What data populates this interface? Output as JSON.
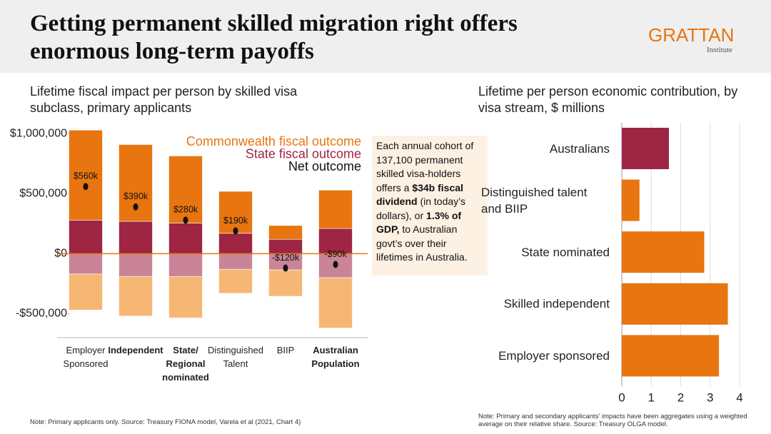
{
  "header": {
    "title": "Getting permanent skilled migration right offers enormous long-term payoffs",
    "logo": "GRATTAN",
    "logo_sub": "Institute"
  },
  "chart_data": [
    {
      "type": "stacked-bar",
      "title": "Lifetime fiscal impact per person by skilled visa subclass, primary applicants",
      "categories": [
        "Employer Sponsored",
        "Independent",
        "State/ Regional nominated",
        "Distinguished Talent",
        "BIIP",
        "Australian Population"
      ],
      "bold_categories": [
        false,
        true,
        true,
        false,
        false,
        true
      ],
      "series": [
        {
          "name": "Commonwealth fiscal outcome",
          "color": "#e8750f",
          "cost_color": "#f7b774",
          "gains": [
            750000,
            640000,
            560000,
            350000,
            115000,
            320000
          ],
          "costs": [
            -300000,
            -330000,
            -345000,
            -200000,
            -220000,
            -420000
          ]
        },
        {
          "name": "State fiscal outcome",
          "color": "#9e2543",
          "cost_color": "#c98597",
          "gains": [
            280000,
            270000,
            255000,
            170000,
            120000,
            210000
          ],
          "costs": [
            -170000,
            -190000,
            -190000,
            -130000,
            -135000,
            -200000
          ]
        }
      ],
      "net": {
        "name": "Net outcome",
        "color": "#111111",
        "values": [
          560000,
          390000,
          280000,
          190000,
          -120000,
          -90000
        ],
        "value_labels": [
          "$560k",
          "$390k",
          "$280k",
          "$190k",
          "-$120k",
          "-$90k"
        ]
      },
      "ylim": [
        -700000,
        1050000
      ],
      "yticks": [
        {
          "value": -500000,
          "label": "-$500,000"
        },
        {
          "value": 0,
          "label": "$0"
        },
        {
          "value": 500000,
          "label": "$500,000"
        },
        {
          "value": 1000000,
          "label": "$1,000,000"
        }
      ],
      "zero_line_color": "#e8750f",
      "annotation": [
        {
          "text": "Each annual cohort of 137,100 permanent skilled visa-holders offers a ",
          "bold": false
        },
        {
          "text": "$34b fiscal dividend",
          "bold": true
        },
        {
          "text": " (in today’s dollars), or ",
          "bold": false
        },
        {
          "text": "1.3% of GDP,",
          "bold": true
        },
        {
          "text": " to Australian govt’s over their lifetimes in Australia.",
          "bold": false
        }
      ],
      "note": "Note: Primary applicants only. Source: Treasury FIONA model, Varela et al (2021, Chart 4)"
    },
    {
      "type": "hbar",
      "title": "Lifetime per person economic contribution, by visa stream, $ millions",
      "categories": [
        "Australians",
        "Distinguished talent and BIIP",
        "State nominated",
        "Skilled independent",
        "Employer sponsored"
      ],
      "values": [
        1.6,
        0.6,
        2.8,
        3.6,
        3.3
      ],
      "colors": [
        "#9e2543",
        "#e8750f",
        "#e8750f",
        "#e8750f",
        "#e8750f"
      ],
      "xlim": [
        0,
        4
      ],
      "xticks": [
        0,
        1,
        2,
        3,
        4
      ],
      "grid": true,
      "note": "Note: Primary and secondary applicants’ impacts have been aggregates using a weighted average on their relative share. Source: Treasury OLGA model."
    }
  ]
}
